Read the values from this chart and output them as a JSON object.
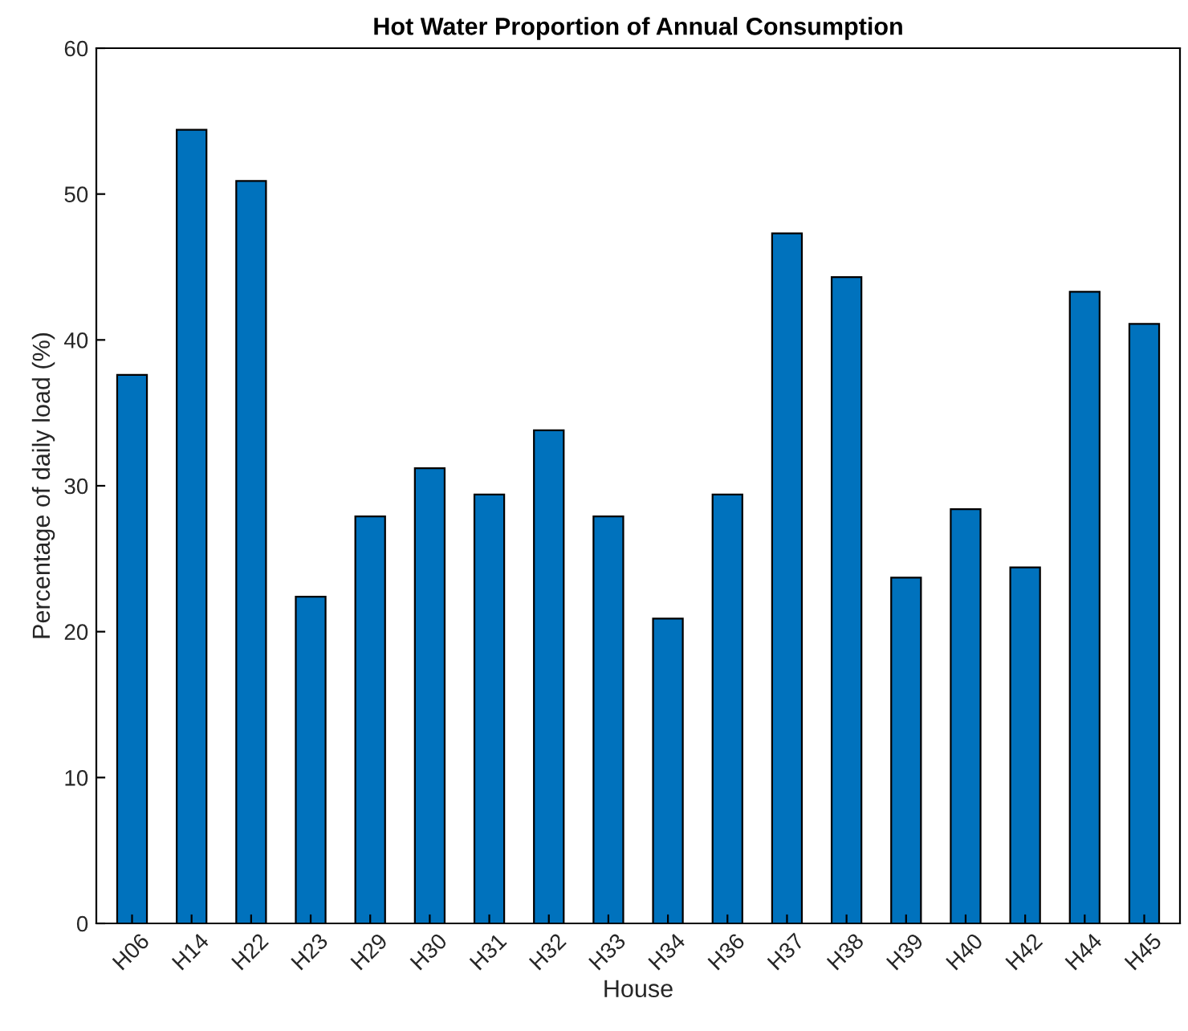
{
  "chart_data": {
    "type": "bar",
    "title": "Hot Water Proportion of Annual Consumption",
    "xlabel": "House",
    "ylabel": "Percentage of daily load (%)",
    "categories": [
      "H06",
      "H14",
      "H22",
      "H23",
      "H29",
      "H30",
      "H31",
      "H32",
      "H33",
      "H34",
      "H36",
      "H37",
      "H38",
      "H39",
      "H40",
      "H42",
      "H44",
      "H45"
    ],
    "values": [
      37.6,
      54.4,
      50.9,
      22.4,
      27.9,
      31.2,
      29.4,
      33.8,
      27.9,
      20.9,
      29.4,
      47.3,
      44.3,
      23.7,
      28.4,
      24.4,
      43.3,
      41.1
    ],
    "color": "#0072bd",
    "ylim": [
      0,
      60
    ],
    "yticks": [
      0,
      10,
      20,
      30,
      40,
      50,
      60
    ],
    "grid": false
  }
}
